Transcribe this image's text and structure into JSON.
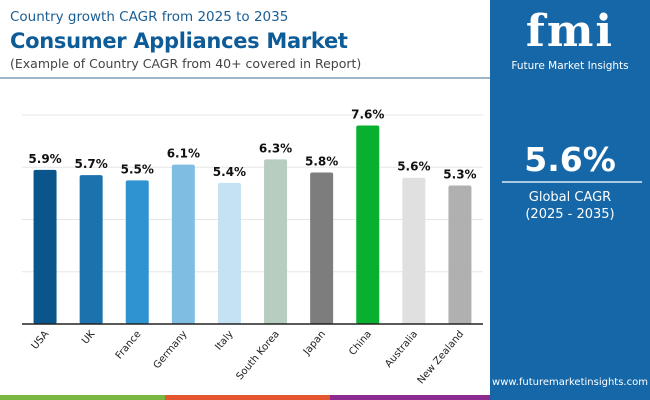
{
  "header": {
    "supertitle": "Country growth CAGR from 2025 to 2035",
    "title": "Consumer Appliances Market",
    "subtitle": "(Example of Country CAGR from 40+ covered in Report)"
  },
  "panel": {
    "logo": "fmi",
    "logo_text": "Future Market Insights",
    "value": "5.6%",
    "label": "Global CAGR",
    "period": "(2025 - 2035)",
    "url": "www.futuremarketinsights.com",
    "background": "#1567a8"
  },
  "chart_data": {
    "type": "bar",
    "categories": [
      "USA",
      "UK",
      "France",
      "Germany",
      "Italy",
      "South Korea",
      "Japan",
      "China",
      "Australia",
      "New Zealand"
    ],
    "values": [
      5.9,
      5.7,
      5.5,
      6.1,
      5.4,
      6.3,
      5.8,
      7.6,
      5.6,
      5.3
    ],
    "data_labels": [
      "5.9%",
      "5.7%",
      "5.5%",
      "6.1%",
      "5.4%",
      "6.3%",
      "5.8%",
      "7.6%",
      "5.6%",
      "5.3%"
    ],
    "colors": [
      "#0a568c",
      "#1b72ad",
      "#2f93d1",
      "#80bde3",
      "#c5e2f3",
      "#b7cdbf",
      "#7d7d7d",
      "#09b02f",
      "#e0e0e0",
      "#b0b0b0"
    ],
    "ylim": [
      0,
      8
    ],
    "grid": true,
    "gridlines": [
      2,
      4,
      6,
      8
    ],
    "xlabel": "",
    "ylabel": "",
    "unit": "%"
  }
}
